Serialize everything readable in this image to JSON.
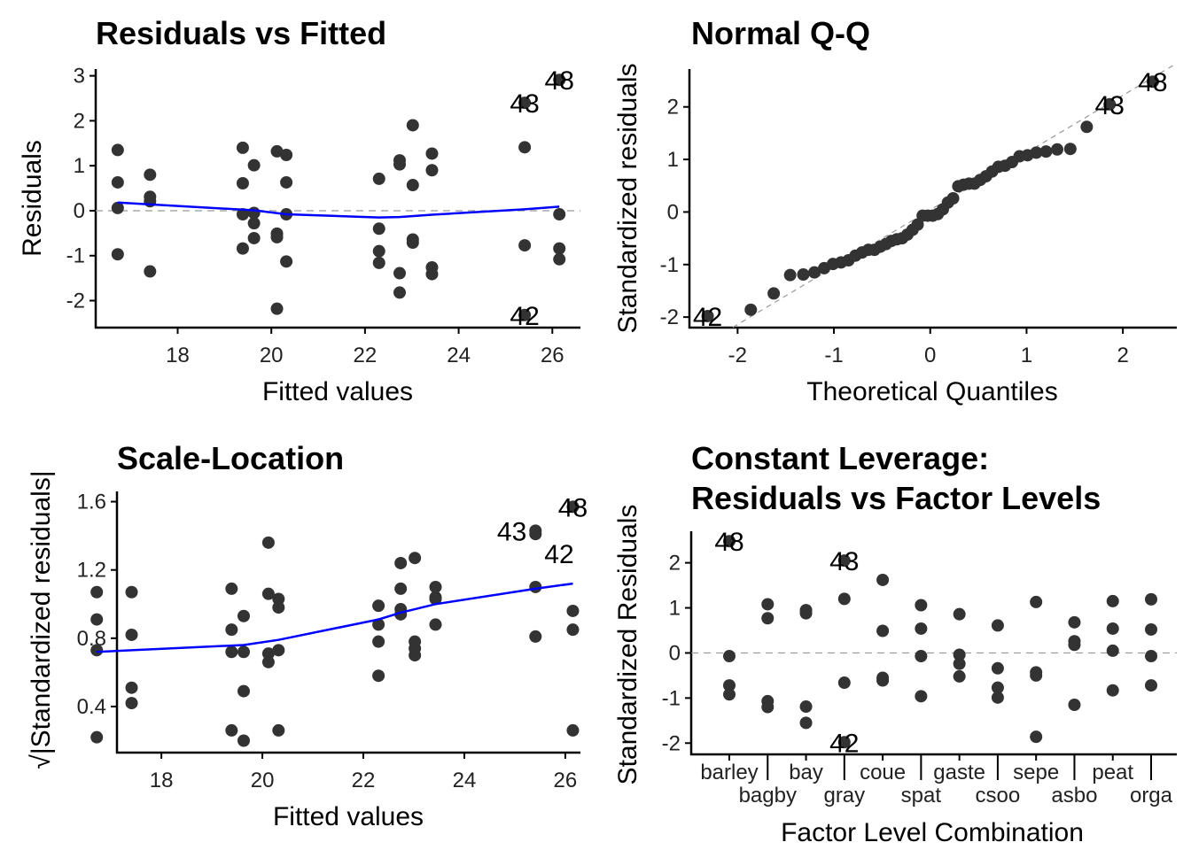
{
  "chart_data": [
    {
      "type": "scatter",
      "title": "Residuals vs Fitted",
      "xlabel": "Fitted values",
      "ylabel": "Residuals",
      "xticks": [
        18,
        20,
        22,
        24,
        26
      ],
      "yticks": [
        -2,
        -1,
        0,
        1,
        2,
        3
      ],
      "xlim": [
        16.25,
        26.6
      ],
      "ylim": [
        -2.6,
        3.15
      ],
      "reference_line": {
        "y": 0,
        "style": "dashed",
        "color": "#aaaaaa"
      },
      "smooth_color": "#0000ff",
      "point_color": "#333333",
      "groups": [
        {
          "x": 16.72,
          "y": [
            1.35,
            0.63,
            0.06,
            -0.97
          ]
        },
        {
          "x": 17.41,
          "y": [
            0.8,
            0.31,
            0.21,
            -1.35
          ]
        },
        {
          "x": 19.39,
          "y": [
            1.4,
            0.61,
            -0.08,
            -0.84
          ]
        },
        {
          "x": 19.63,
          "y": [
            1.01,
            -0.05,
            -0.28,
            -0.61
          ]
        },
        {
          "x": 20.12,
          "y": [
            1.32,
            -0.51,
            -0.59,
            -2.18
          ]
        },
        {
          "x": 20.32,
          "y": [
            1.24,
            0.63,
            -0.08,
            -1.13
          ]
        },
        {
          "x": 22.3,
          "y": [
            0.71,
            -0.4,
            -0.9,
            -1.16
          ]
        },
        {
          "x": 22.74,
          "y": [
            1.12,
            1.03,
            -1.39,
            -1.82
          ]
        },
        {
          "x": 23.02,
          "y": [
            1.9,
            0.57,
            -0.64,
            -0.71
          ]
        },
        {
          "x": 23.43,
          "y": [
            1.27,
            0.9,
            -1.26,
            -1.41
          ]
        },
        {
          "x": 25.41,
          "y": [
            2.4,
            1.41,
            -0.77,
            -2.32
          ],
          "labels": [
            "43",
            null,
            null,
            "42"
          ]
        },
        {
          "x": 26.15,
          "y": [
            2.91,
            -0.08,
            -0.84,
            -1.08
          ],
          "labels": [
            "48",
            null,
            null,
            null
          ]
        }
      ],
      "smooth": {
        "x": [
          16.72,
          19.63,
          20.32,
          22.3,
          22.74,
          23.43,
          25.41,
          26.15
        ],
        "y": [
          0.18,
          0.01,
          -0.08,
          -0.15,
          -0.14,
          -0.09,
          0.03,
          0.09
        ]
      }
    },
    {
      "type": "scatter",
      "title": "Normal Q-Q",
      "xlabel": "Theoretical Quantiles",
      "ylabel": "Standardized residuals",
      "xticks": [
        -2,
        -1,
        0,
        1,
        2
      ],
      "yticks": [
        -2,
        -1,
        0,
        1,
        2
      ],
      "xlim": [
        -2.5,
        2.56
      ],
      "ylim": [
        -2.2,
        2.72
      ],
      "reference_line": {
        "intercept": 0.04,
        "slope": 1.09,
        "style": "dashed",
        "color": "#999999"
      },
      "point_color": "#333333",
      "sample": [
        1.15,
        0.54,
        0.05,
        -0.83,
        0.68,
        0.26,
        0.18,
        -1.15,
        1.19,
        0.52,
        -0.07,
        -0.72,
        0.86,
        -0.04,
        -0.24,
        -0.52,
        1.13,
        -0.43,
        -0.5,
        -1.86,
        1.06,
        0.54,
        -0.07,
        -0.96,
        0.61,
        -0.34,
        -0.77,
        -0.99,
        0.95,
        0.88,
        -1.19,
        -1.55,
        1.62,
        0.49,
        -0.55,
        -0.61,
        1.08,
        0.77,
        -1.07,
        -1.2,
        2.05,
        1.2,
        -0.66,
        -1.98,
        2.48,
        -0.07,
        -0.72,
        -0.92
      ],
      "point_labels": {
        "2.48": "48",
        "2.05": "43",
        "-1.98": "42"
      }
    },
    {
      "type": "scatter",
      "title": "Scale-Location",
      "xlabel": "Fitted values",
      "ylabel": "√|Standardized residuals|",
      "xticks": [
        18,
        20,
        22,
        24,
        26
      ],
      "yticks": [
        0.4,
        0.8,
        1.2,
        1.6
      ],
      "ytick_labels": [
        "0.4",
        "0.8",
        "1.2",
        "1.6"
      ],
      "xlim": [
        17.12,
        26.3
      ],
      "ylim": [
        0.13,
        1.66
      ],
      "smooth_color": "#0000ff",
      "point_color": "#333333",
      "groups": [
        {
          "x": 16.72,
          "y": [
            1.07,
            0.73,
            0.22,
            0.91
          ]
        },
        {
          "x": 17.41,
          "y": [
            0.82,
            0.51,
            0.42,
            1.07
          ]
        },
        {
          "x": 19.39,
          "y": [
            1.09,
            0.72,
            0.26,
            0.85
          ]
        },
        {
          "x": 19.63,
          "y": [
            0.93,
            0.2,
            0.49,
            0.72
          ]
        },
        {
          "x": 20.12,
          "y": [
            1.06,
            0.66,
            0.71,
            1.36
          ]
        },
        {
          "x": 20.32,
          "y": [
            1.03,
            0.73,
            0.26,
            0.98
          ]
        },
        {
          "x": 22.3,
          "y": [
            0.78,
            0.58,
            0.88,
            0.99
          ]
        },
        {
          "x": 22.74,
          "y": [
            0.97,
            0.94,
            1.09,
            1.24
          ]
        },
        {
          "x": 23.02,
          "y": [
            1.27,
            0.7,
            0.74,
            0.78
          ]
        },
        {
          "x": 23.43,
          "y": [
            1.04,
            0.88,
            1.03,
            1.1
          ]
        },
        {
          "x": 25.41,
          "y": [
            1.43,
            1.1,
            0.81,
            1.41
          ],
          "labels": [
            "43",
            null,
            null,
            "42"
          ]
        },
        {
          "x": 26.15,
          "y": [
            1.57,
            0.26,
            0.85,
            0.96
          ],
          "labels": [
            "48",
            null,
            null,
            null
          ]
        }
      ],
      "smooth": {
        "x": [
          16.72,
          19.63,
          20.32,
          22.3,
          22.74,
          23.43,
          25.41,
          26.15
        ],
        "y": [
          0.72,
          0.76,
          0.79,
          0.91,
          0.95,
          1.0,
          1.09,
          1.12
        ]
      }
    },
    {
      "type": "scatter",
      "title": "Constant Leverage:",
      "title_line2": "Residuals vs Factor Levels",
      "xlabel": "Factor Level Combination",
      "ylabel": "Standardized Residuals",
      "yticks": [
        -2,
        -1,
        0,
        1,
        2
      ],
      "ylim": [
        -2.25,
        2.7
      ],
      "reference_line": {
        "y": 0,
        "style": "dashed",
        "color": "#999999"
      },
      "point_color": "#333333",
      "categories": [
        "barley",
        "bagby",
        "bay",
        "gray",
        "coue",
        "spat",
        "gaste",
        "csoo",
        "sepe",
        "asbo",
        "peat",
        "orga"
      ],
      "groups": [
        {
          "y": [
            2.48,
            -0.07,
            -0.72,
            -0.92
          ],
          "labels": [
            "48",
            null,
            null,
            null
          ]
        },
        {
          "y": [
            1.08,
            0.77,
            -1.07,
            -1.2
          ]
        },
        {
          "y": [
            0.95,
            0.88,
            -1.19,
            -1.55
          ]
        },
        {
          "y": [
            2.05,
            1.2,
            -0.66,
            -1.98
          ],
          "labels": [
            "43",
            null,
            null,
            "42"
          ]
        },
        {
          "y": [
            1.62,
            0.49,
            -0.55,
            -0.61
          ]
        },
        {
          "y": [
            1.06,
            0.54,
            -0.07,
            -0.96
          ]
        },
        {
          "y": [
            0.86,
            -0.04,
            -0.24,
            -0.52
          ]
        },
        {
          "y": [
            0.61,
            -0.34,
            -0.77,
            -0.99
          ]
        },
        {
          "y": [
            1.13,
            -0.43,
            -0.5,
            -1.86
          ]
        },
        {
          "y": [
            0.68,
            0.26,
            0.18,
            -1.15
          ]
        },
        {
          "y": [
            1.15,
            0.54,
            0.05,
            -0.83
          ]
        },
        {
          "y": [
            1.19,
            0.52,
            -0.07,
            -0.72
          ]
        }
      ]
    }
  ]
}
